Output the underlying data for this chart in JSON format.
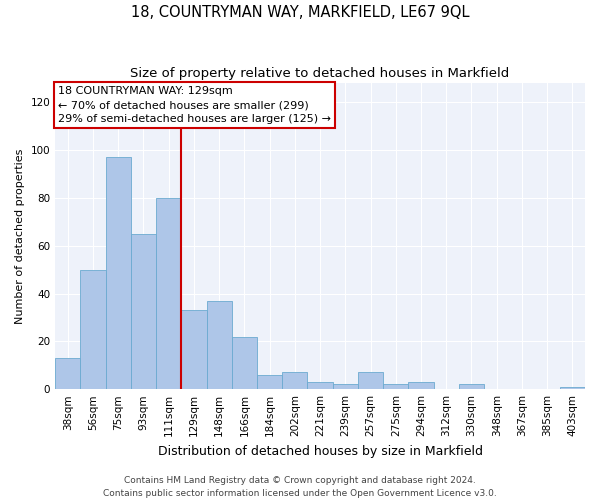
{
  "title": "18, COUNTRYMAN WAY, MARKFIELD, LE67 9QL",
  "subtitle": "Size of property relative to detached houses in Markfield",
  "xlabel": "Distribution of detached houses by size in Markfield",
  "ylabel": "Number of detached properties",
  "categories": [
    "38sqm",
    "56sqm",
    "75sqm",
    "93sqm",
    "111sqm",
    "129sqm",
    "148sqm",
    "166sqm",
    "184sqm",
    "202sqm",
    "221sqm",
    "239sqm",
    "257sqm",
    "275sqm",
    "294sqm",
    "312sqm",
    "330sqm",
    "348sqm",
    "367sqm",
    "385sqm",
    "403sqm"
  ],
  "values": [
    13,
    50,
    97,
    65,
    80,
    33,
    37,
    22,
    6,
    7,
    3,
    2,
    7,
    2,
    3,
    0,
    2,
    0,
    0,
    0,
    1
  ],
  "bar_color": "#aec6e8",
  "bar_edge_color": "#6baad0",
  "highlight_line_index": 5,
  "highlight_line_color": "#cc0000",
  "annotation_text": "18 COUNTRYMAN WAY: 129sqm\n← 70% of detached houses are smaller (299)\n29% of semi-detached houses are larger (125) →",
  "annotation_box_facecolor": "#ffffff",
  "annotation_box_edgecolor": "#cc0000",
  "ylim": [
    0,
    128
  ],
  "yticks": [
    0,
    20,
    40,
    60,
    80,
    100,
    120
  ],
  "background_color": "#eef2fa",
  "footer_text": "Contains HM Land Registry data © Crown copyright and database right 2024.\nContains public sector information licensed under the Open Government Licence v3.0.",
  "title_fontsize": 10.5,
  "subtitle_fontsize": 9.5,
  "xlabel_fontsize": 9,
  "ylabel_fontsize": 8,
  "tick_fontsize": 7.5,
  "annotation_fontsize": 8,
  "footer_fontsize": 6.5
}
